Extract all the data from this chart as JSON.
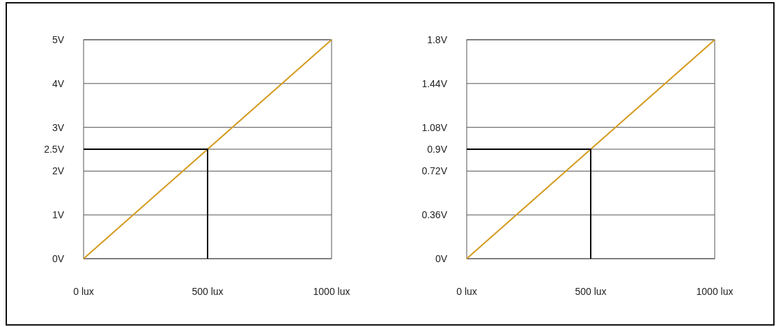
{
  "chart_data": [
    {
      "type": "line",
      "xlim": [
        0,
        1000
      ],
      "ylim": [
        0,
        5
      ],
      "xticks": [
        {
          "value": 0,
          "label": "0 lux"
        },
        {
          "value": 500,
          "label": "500 lux"
        },
        {
          "value": 1000,
          "label": "1000 lux"
        }
      ],
      "yticks": [
        {
          "value": 0,
          "label": "0V"
        },
        {
          "value": 1,
          "label": "1V"
        },
        {
          "value": 2,
          "label": "2V"
        },
        {
          "value": 2.5,
          "label": "2.5V"
        },
        {
          "value": 3,
          "label": "3V"
        },
        {
          "value": 4,
          "label": "4V"
        },
        {
          "value": 5,
          "label": "5V"
        }
      ],
      "grid": "y",
      "series": [
        {
          "color": "#d49a1e",
          "x": [
            0,
            1000
          ],
          "values": [
            0,
            5
          ]
        },
        {
          "color": "#000000",
          "x": [
            0,
            500,
            500
          ],
          "values": [
            2.5,
            2.5,
            0
          ]
        }
      ]
    },
    {
      "type": "line",
      "xlim": [
        0,
        1000
      ],
      "ylim": [
        0,
        1.8
      ],
      "xticks": [
        {
          "value": 0,
          "label": "0 lux"
        },
        {
          "value": 500,
          "label": "500 lux"
        },
        {
          "value": 1000,
          "label": "1000 lux"
        }
      ],
      "yticks": [
        {
          "value": 0,
          "label": "0V"
        },
        {
          "value": 0.36,
          "label": "0.36V"
        },
        {
          "value": 0.72,
          "label": "0.72V"
        },
        {
          "value": 0.9,
          "label": "0.9V"
        },
        {
          "value": 1.08,
          "label": "1.08V"
        },
        {
          "value": 1.44,
          "label": "1.44V"
        },
        {
          "value": 1.8,
          "label": "1.8V"
        }
      ],
      "grid": "y",
      "series": [
        {
          "color": "#d49a1e",
          "x": [
            0,
            1000
          ],
          "values": [
            0,
            1.8
          ]
        },
        {
          "color": "#000000",
          "x": [
            0,
            500,
            500
          ],
          "values": [
            0.9,
            0.9,
            0
          ]
        }
      ]
    }
  ]
}
